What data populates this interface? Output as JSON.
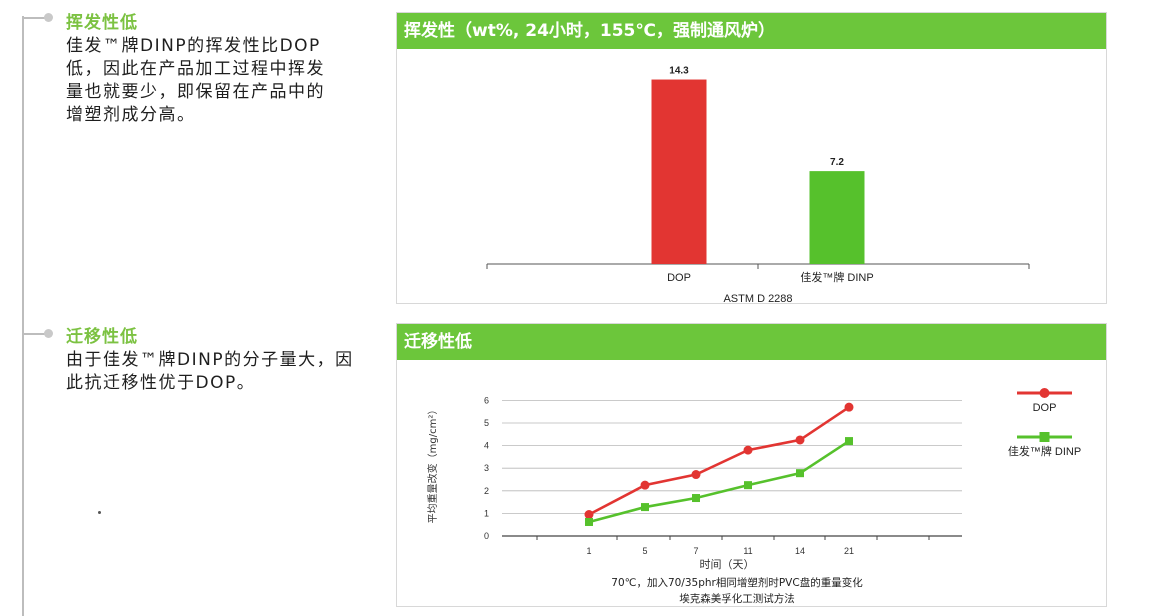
{
  "left": {
    "volatility": {
      "title": "挥发性低",
      "lines": [
        "佳发™牌DINP的挥发性比DOP",
        "低，因此在产品加工过程中挥发",
        "量也就要少，即保留在产品中的",
        "增塑剂成分高。"
      ]
    },
    "migration": {
      "title": "迁移性低",
      "lines": [
        "由于佳发™牌DINP的分子量大，因",
        "此抗迁移性优于DOP。"
      ]
    }
  },
  "chart_data": [
    {
      "type": "bar",
      "title": "挥发性（wt%, 24小时，155℃，强制通风炉）",
      "categories": [
        "DOP",
        "佳发™牌 DINP"
      ],
      "values": [
        14.3,
        7.2
      ],
      "value_labels": [
        "14.3",
        "7.2"
      ],
      "xlabel": "ASTM D 2288",
      "ylabel": "",
      "ylim": [
        0,
        16
      ],
      "colors": [
        "#e23532",
        "#56c12c"
      ],
      "grid": false
    },
    {
      "type": "line",
      "title": "迁移性低",
      "x": [
        1,
        5,
        7,
        11,
        14,
        21
      ],
      "x_tick_labels": [
        "1",
        "5",
        "7",
        "11",
        "14",
        "21"
      ],
      "xlabel": "时间（天）",
      "ylabel": "平均重量改变（mg/cm²）",
      "y_ticks": [
        "0",
        "1",
        "2",
        "3",
        "4",
        "5",
        "6"
      ],
      "ylim": [
        0,
        6
      ],
      "grid": true,
      "legend_position": "right",
      "series": [
        {
          "name": "DOP",
          "values": [
            0.95,
            2.25,
            2.72,
            3.8,
            4.25,
            5.7
          ],
          "color": "#e23532",
          "marker": "circle"
        },
        {
          "name": "佳发™牌 DINP",
          "values": [
            0.62,
            1.28,
            1.68,
            2.25,
            2.78,
            4.2
          ],
          "color": "#56c12c",
          "marker": "square"
        }
      ],
      "caption": [
        "70℃，加入70/35phr相同增塑剂时PVC盘的重量变化",
        "埃克森美孚化工测试方法"
      ]
    }
  ]
}
